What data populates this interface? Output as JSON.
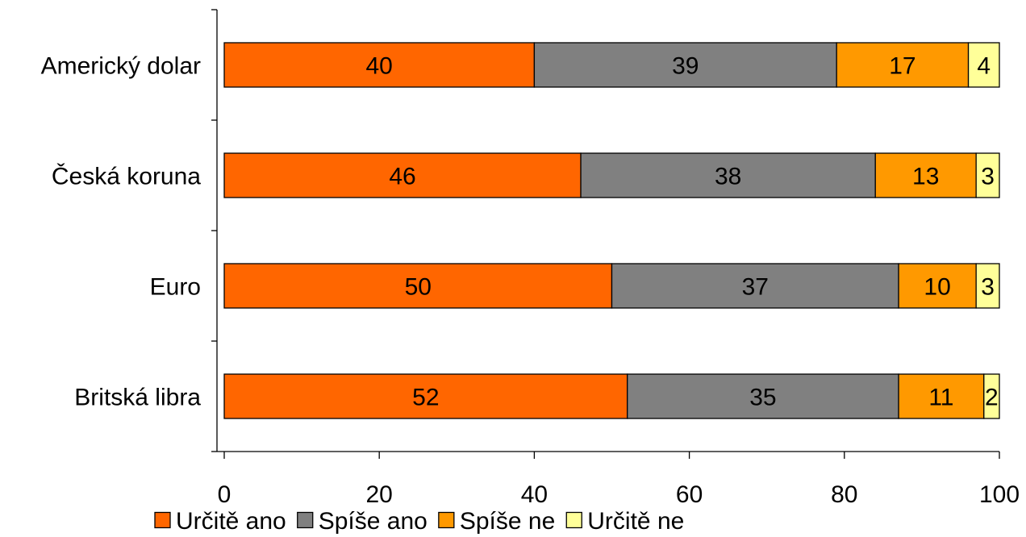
{
  "chart_data": {
    "type": "bar",
    "orientation": "horizontal",
    "stacked": true,
    "categories": [
      "Americký dolar",
      "Česká koruna",
      "Euro",
      "Britská libra"
    ],
    "series": [
      {
        "name": "Určitě ano",
        "color": "#FF6600",
        "values": [
          40,
          46,
          50,
          52
        ]
      },
      {
        "name": "Spíše ano",
        "color": "#808080",
        "values": [
          39,
          38,
          37,
          35
        ]
      },
      {
        "name": "Spíše ne",
        "color": "#FF9900",
        "values": [
          17,
          13,
          10,
          11
        ]
      },
      {
        "name": "Určitě ne",
        "color": "#FFFF99",
        "values": [
          4,
          3,
          3,
          2
        ]
      }
    ],
    "xlim": [
      0,
      100
    ],
    "xticks": [
      0,
      20,
      40,
      60,
      80,
      100
    ],
    "show_data_labels": true,
    "grid": false,
    "legend": "bottom"
  }
}
